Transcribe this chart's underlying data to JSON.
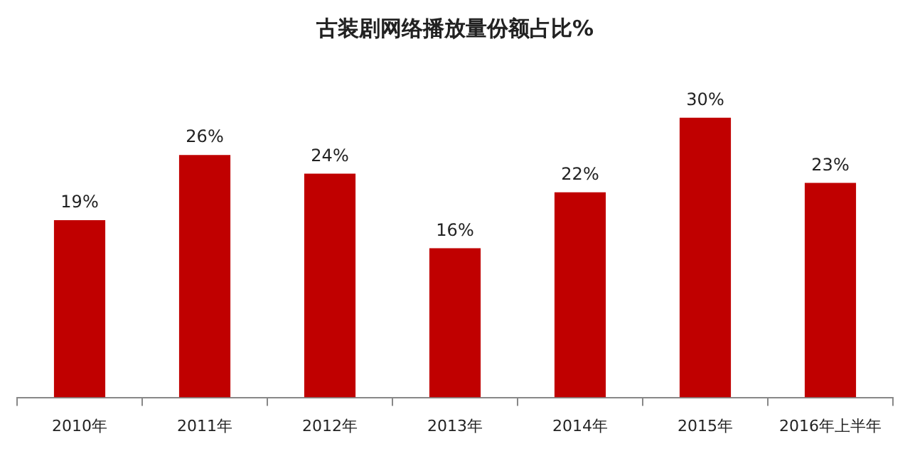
{
  "chart_data": {
    "type": "bar",
    "title": "古装剧网络播放量份额占比%",
    "categories": [
      "2010年",
      "2011年",
      "2012年",
      "2013年",
      "2014年",
      "2015年",
      "2016年上半年"
    ],
    "values": [
      19,
      26,
      24,
      16,
      22,
      30,
      23
    ],
    "value_labels": [
      "19%",
      "26%",
      "24%",
      "16%",
      "22%",
      "30%",
      "23%"
    ],
    "color": "#c00000",
    "grid": false,
    "legend": false,
    "tick_labels": "x"
  }
}
